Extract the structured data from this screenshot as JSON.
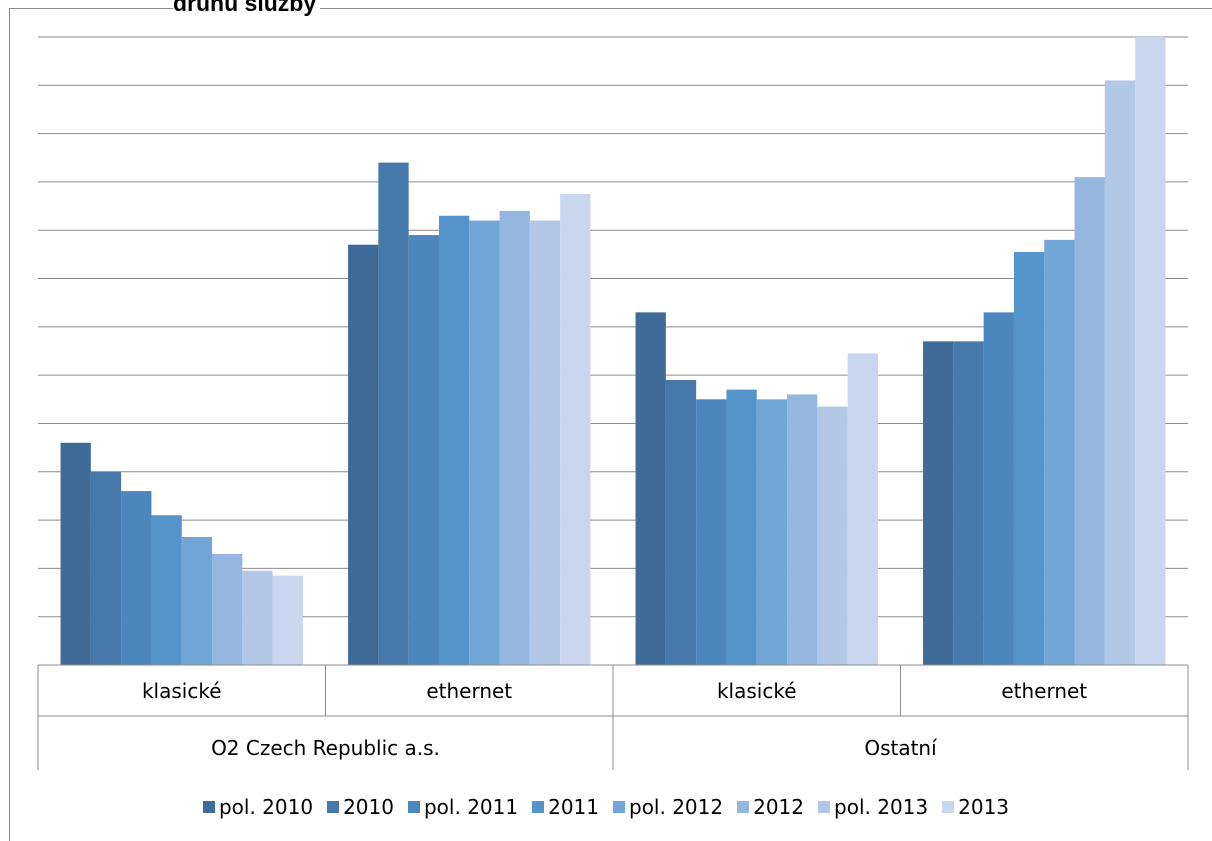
{
  "chart_data": {
    "type": "bar",
    "title": "druhu služby",
    "xlabel": "",
    "ylabel": "",
    "grid": true,
    "legend_position": "bottom",
    "ylim": [
      0,
      13
    ],
    "groups": [
      {
        "label": "O2 Czech Republic a.s.",
        "categories": [
          "klasické",
          "ethernet"
        ]
      },
      {
        "label": "Ostatní",
        "categories": [
          "klasické",
          "ethernet"
        ]
      }
    ],
    "categories": [
      "klasické",
      "ethernet",
      "klasické",
      "ethernet"
    ],
    "series": [
      {
        "name": "pol. 2010",
        "color": "#3f6b98",
        "values": [
          4.6,
          8.7,
          7.3,
          6.7
        ]
      },
      {
        "name": "2010",
        "color": "#4679aa",
        "values": [
          4.0,
          10.4,
          5.9,
          6.7
        ]
      },
      {
        "name": "pol. 2011",
        "color": "#4d86bc",
        "values": [
          3.6,
          8.9,
          5.5,
          7.3
        ]
      },
      {
        "name": "2011",
        "color": "#5594cb",
        "values": [
          3.1,
          9.3,
          5.7,
          8.55
        ]
      },
      {
        "name": "pol. 2012",
        "color": "#72a6d6",
        "values": [
          2.65,
          9.2,
          5.5,
          8.8
        ]
      },
      {
        "name": "2012",
        "color": "#95b7df",
        "values": [
          2.3,
          9.4,
          5.6,
          10.1
        ]
      },
      {
        "name": "pol. 2013",
        "color": "#b3c8e6",
        "values": [
          1.95,
          9.2,
          5.35,
          12.1
        ]
      },
      {
        "name": "2013",
        "color": "#c9d7ee",
        "values": [
          1.85,
          9.75,
          6.45,
          13.0
        ]
      }
    ]
  }
}
